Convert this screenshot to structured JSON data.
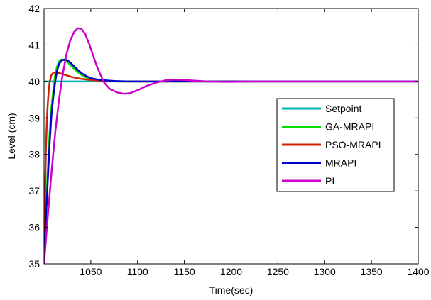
{
  "chart_data": {
    "type": "line",
    "title": "",
    "xlabel": "Time(sec)",
    "ylabel": "Level (cm)",
    "xlim": [
      1000,
      1400
    ],
    "ylim": [
      35,
      42
    ],
    "x_ticks": [
      1050,
      1100,
      1150,
      1200,
      1250,
      1300,
      1350,
      1400
    ],
    "x_tick_labels": [
      "1050",
      "1100",
      "1150",
      "1200",
      "1250",
      "1300",
      "1350",
      "1400"
    ],
    "y_ticks": [
      35,
      36,
      37,
      38,
      39,
      40,
      41,
      42
    ],
    "y_tick_labels": [
      "35",
      "36",
      "37",
      "38",
      "39",
      "40",
      "41",
      "42"
    ],
    "grid": false,
    "legend_position": "center-right",
    "series": [
      {
        "name": "Setpoint",
        "color": "#00b4b4",
        "points": [
          [
            1000,
            40
          ],
          [
            1400,
            40
          ]
        ]
      },
      {
        "name": "GA-MRAPI",
        "color": "#00e000",
        "points": [
          [
            1000,
            35
          ],
          [
            1002,
            36.4
          ],
          [
            1004,
            37.6
          ],
          [
            1006,
            38.6
          ],
          [
            1008,
            39.3
          ],
          [
            1010,
            39.8
          ],
          [
            1012,
            40.2
          ],
          [
            1014,
            40.42
          ],
          [
            1016,
            40.55
          ],
          [
            1018,
            40.6
          ],
          [
            1020,
            40.6
          ],
          [
            1023,
            40.57
          ],
          [
            1026,
            40.5
          ],
          [
            1030,
            40.4
          ],
          [
            1035,
            40.28
          ],
          [
            1040,
            40.18
          ],
          [
            1045,
            40.11
          ],
          [
            1050,
            40.06
          ],
          [
            1060,
            40.02
          ],
          [
            1080,
            40.0
          ],
          [
            1400,
            40.0
          ]
        ]
      },
      {
        "name": "PSO-MRAPI",
        "color": "#cc2200",
        "points": [
          [
            1000,
            35
          ],
          [
            1001,
            36.8
          ],
          [
            1002,
            38.1
          ],
          [
            1003,
            38.9
          ],
          [
            1004,
            39.4
          ],
          [
            1005,
            39.75
          ],
          [
            1006,
            39.98
          ],
          [
            1008,
            40.18
          ],
          [
            1010,
            40.24
          ],
          [
            1012,
            40.25
          ],
          [
            1015,
            40.24
          ],
          [
            1020,
            40.2
          ],
          [
            1025,
            40.16
          ],
          [
            1030,
            40.12
          ],
          [
            1040,
            40.07
          ],
          [
            1050,
            40.04
          ],
          [
            1060,
            40.02
          ],
          [
            1080,
            40.0
          ],
          [
            1400,
            40.0
          ]
        ]
      },
      {
        "name": "MRAPI",
        "color": "#0000cc",
        "points": [
          [
            1000,
            35
          ],
          [
            1002,
            36.2
          ],
          [
            1004,
            37.3
          ],
          [
            1006,
            38.3
          ],
          [
            1008,
            39.1
          ],
          [
            1010,
            39.6
          ],
          [
            1012,
            40.0
          ],
          [
            1014,
            40.3
          ],
          [
            1016,
            40.48
          ],
          [
            1019,
            40.58
          ],
          [
            1022,
            40.6
          ],
          [
            1025,
            40.58
          ],
          [
            1028,
            40.52
          ],
          [
            1032,
            40.42
          ],
          [
            1036,
            40.32
          ],
          [
            1040,
            40.23
          ],
          [
            1045,
            40.15
          ],
          [
            1050,
            40.09
          ],
          [
            1060,
            40.04
          ],
          [
            1075,
            40.01
          ],
          [
            1090,
            40.0
          ],
          [
            1400,
            40.0
          ]
        ]
      },
      {
        "name": "PI",
        "color": "#cc00cc",
        "points": [
          [
            1000,
            35
          ],
          [
            1004,
            36.3
          ],
          [
            1008,
            37.5
          ],
          [
            1012,
            38.6
          ],
          [
            1016,
            39.5
          ],
          [
            1020,
            40.2
          ],
          [
            1024,
            40.75
          ],
          [
            1028,
            41.12
          ],
          [
            1032,
            41.35
          ],
          [
            1036,
            41.46
          ],
          [
            1040,
            41.44
          ],
          [
            1044,
            41.3
          ],
          [
            1048,
            41.05
          ],
          [
            1052,
            40.75
          ],
          [
            1056,
            40.45
          ],
          [
            1060,
            40.2
          ],
          [
            1064,
            39.98
          ],
          [
            1070,
            39.8
          ],
          [
            1078,
            39.7
          ],
          [
            1086,
            39.66
          ],
          [
            1092,
            39.68
          ],
          [
            1100,
            39.76
          ],
          [
            1110,
            39.88
          ],
          [
            1120,
            39.97
          ],
          [
            1130,
            40.03
          ],
          [
            1140,
            40.05
          ],
          [
            1150,
            40.04
          ],
          [
            1160,
            40.02
          ],
          [
            1175,
            40.0
          ],
          [
            1190,
            39.99
          ],
          [
            1200,
            39.99
          ],
          [
            1220,
            40.0
          ],
          [
            1400,
            40.0
          ]
        ]
      }
    ]
  }
}
